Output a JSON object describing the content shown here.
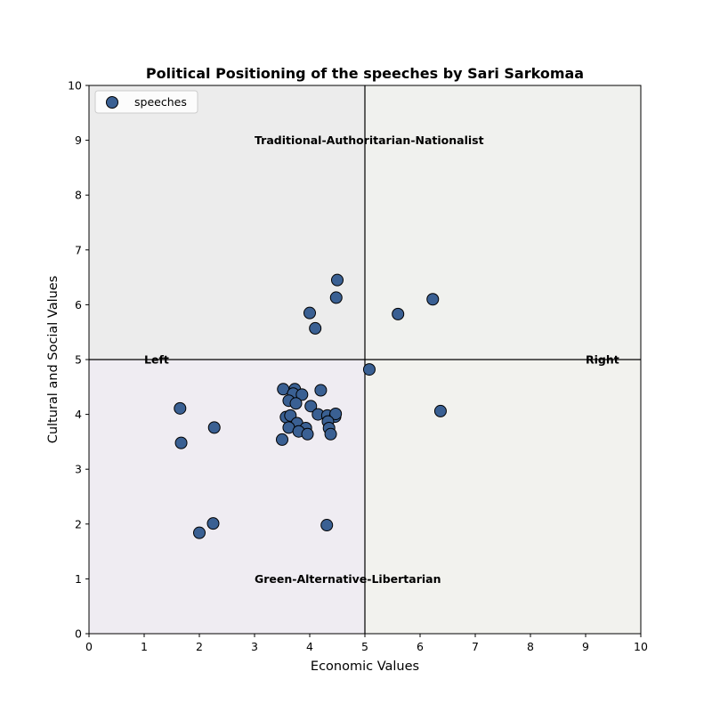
{
  "colors": {
    "quadrant_top_left": "#ececec",
    "quadrant_top_right": "#f0f1ee",
    "quadrant_bottom_left": "#efecf2",
    "quadrant_bottom_right": "#f2f2ee",
    "marker_fill": "#3a6093",
    "marker_edge": "#000000",
    "axis_line": "#000000"
  },
  "chart_data": {
    "type": "scatter",
    "title": "Political Positioning of the speeches by Sari Sarkomaa",
    "xlabel": "Economic Values",
    "ylabel": "Cultural and Social Values",
    "xlim": [
      0,
      10
    ],
    "ylim": [
      0,
      10
    ],
    "xticks": [
      "0",
      "1",
      "2",
      "3",
      "4",
      "5",
      "6",
      "7",
      "8",
      "9",
      "10"
    ],
    "yticks": [
      "0",
      "1",
      "2",
      "3",
      "4",
      "5",
      "6",
      "7",
      "8",
      "9",
      "10"
    ],
    "grid": false,
    "legend": {
      "position": "upper-left",
      "entries": [
        "speeches"
      ]
    },
    "divider_lines": {
      "x": 5,
      "y": 5
    },
    "annotations": [
      {
        "text": "Traditional-Authoritarian-Nationalist",
        "x": 3.0,
        "y": 9.0
      },
      {
        "text": "Green-Alternative-Libertarian",
        "x": 3.0,
        "y": 1.0
      },
      {
        "text": "Left",
        "x": 1.0,
        "y": 5.0
      },
      {
        "text": "Right",
        "x": 9.0,
        "y": 5.0
      }
    ],
    "series": [
      {
        "name": "speeches",
        "points": [
          [
            4.5,
            6.45
          ],
          [
            4.48,
            6.13
          ],
          [
            4.0,
            5.85
          ],
          [
            4.1,
            5.57
          ],
          [
            5.6,
            5.83
          ],
          [
            6.23,
            6.1
          ],
          [
            5.08,
            4.82
          ],
          [
            6.37,
            4.06
          ],
          [
            1.65,
            4.11
          ],
          [
            1.67,
            3.48
          ],
          [
            2.27,
            3.76
          ],
          [
            2.0,
            1.84
          ],
          [
            2.25,
            2.01
          ],
          [
            4.31,
            1.98
          ],
          [
            3.52,
            4.46
          ],
          [
            3.73,
            4.46
          ],
          [
            3.7,
            4.38
          ],
          [
            3.86,
            4.36
          ],
          [
            4.2,
            4.44
          ],
          [
            3.62,
            4.25
          ],
          [
            3.75,
            4.2
          ],
          [
            4.02,
            4.15
          ],
          [
            4.15,
            4.0
          ],
          [
            4.32,
            3.98
          ],
          [
            4.46,
            3.96
          ],
          [
            4.47,
            4.01
          ],
          [
            3.57,
            3.95
          ],
          [
            3.65,
            3.98
          ],
          [
            3.77,
            3.84
          ],
          [
            4.33,
            3.87
          ],
          [
            3.62,
            3.76
          ],
          [
            3.93,
            3.75
          ],
          [
            4.35,
            3.75
          ],
          [
            3.8,
            3.69
          ],
          [
            3.96,
            3.64
          ],
          [
            4.38,
            3.64
          ],
          [
            3.5,
            3.54
          ]
        ]
      }
    ]
  }
}
